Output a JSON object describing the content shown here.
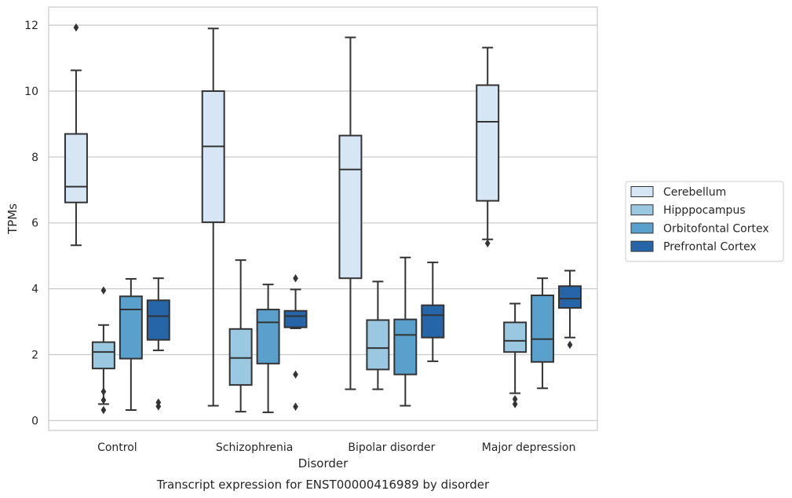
{
  "chart_data": {
    "type": "boxplot",
    "title": "Transcript expression for ENST00000416989 by disorder",
    "xlabel": "Disorder",
    "ylabel": "TPMs",
    "ylim": [
      -0.3,
      12.55
    ],
    "yticks": [
      0,
      2,
      4,
      6,
      8,
      10,
      12
    ],
    "grid": true,
    "legend_position": "right",
    "categories": [
      "Control",
      "Schizophrenia",
      "Bipolar disorder",
      "Major depression"
    ],
    "series": [
      {
        "name": "Cerebellum",
        "color": "#d6e6f4",
        "boxes": [
          {
            "whislo": 5.32,
            "q1": 6.62,
            "med": 7.1,
            "q3": 8.7,
            "whishi": 10.63,
            "fliers": [
              11.93
            ]
          },
          {
            "whislo": 0.45,
            "q1": 6.02,
            "med": 8.32,
            "q3": 10.0,
            "whishi": 11.9,
            "fliers": []
          },
          {
            "whislo": 0.95,
            "q1": 4.32,
            "med": 7.62,
            "q3": 8.65,
            "whishi": 11.63,
            "fliers": []
          },
          {
            "whislo": 5.5,
            "q1": 6.67,
            "med": 9.07,
            "q3": 10.18,
            "whishi": 11.32,
            "fliers": [
              5.38
            ]
          }
        ]
      },
      {
        "name": "Hipppocampus",
        "color": "#9ac8e0",
        "boxes": [
          {
            "whislo": 0.5,
            "q1": 1.58,
            "med": 2.08,
            "q3": 2.38,
            "whishi": 2.9,
            "fliers": [
              0.88,
              0.62,
              3.95,
              0.32
            ]
          },
          {
            "whislo": 0.27,
            "q1": 1.08,
            "med": 1.9,
            "q3": 2.78,
            "whishi": 4.87,
            "fliers": []
          },
          {
            "whislo": 0.95,
            "q1": 1.55,
            "med": 2.2,
            "q3": 3.05,
            "whishi": 4.22,
            "fliers": []
          },
          {
            "whislo": 0.83,
            "q1": 2.08,
            "med": 2.42,
            "q3": 2.98,
            "whishi": 3.55,
            "fliers": [
              0.5,
              0.65
            ]
          }
        ]
      },
      {
        "name": "Orbitofontal Cortex",
        "color": "#5aa0cd",
        "boxes": [
          {
            "whislo": 0.32,
            "q1": 1.88,
            "med": 3.37,
            "q3": 3.77,
            "whishi": 4.3,
            "fliers": []
          },
          {
            "whislo": 0.25,
            "q1": 1.73,
            "med": 2.98,
            "q3": 3.37,
            "whishi": 4.13,
            "fliers": []
          },
          {
            "whislo": 0.45,
            "q1": 1.4,
            "med": 2.6,
            "q3": 3.07,
            "whishi": 4.95,
            "fliers": []
          },
          {
            "whislo": 0.98,
            "q1": 1.78,
            "med": 2.47,
            "q3": 3.8,
            "whishi": 4.32,
            "fliers": []
          }
        ]
      },
      {
        "name": "Prefrontal Cortex",
        "color": "#2666a8",
        "boxes": [
          {
            "whislo": 2.13,
            "q1": 2.45,
            "med": 3.17,
            "q3": 3.65,
            "whishi": 4.32,
            "fliers": [
              0.55,
              0.43
            ]
          },
          {
            "whislo": 2.8,
            "q1": 2.83,
            "med": 3.17,
            "q3": 3.33,
            "whishi": 3.98,
            "fliers": [
              4.32,
              1.4,
              0.42
            ]
          },
          {
            "whislo": 1.8,
            "q1": 2.52,
            "med": 3.2,
            "q3": 3.5,
            "whishi": 4.8,
            "fliers": []
          },
          {
            "whislo": 2.52,
            "q1": 3.42,
            "med": 3.7,
            "q3": 4.08,
            "whishi": 4.55,
            "fliers": [
              2.3
            ]
          }
        ]
      }
    ]
  }
}
